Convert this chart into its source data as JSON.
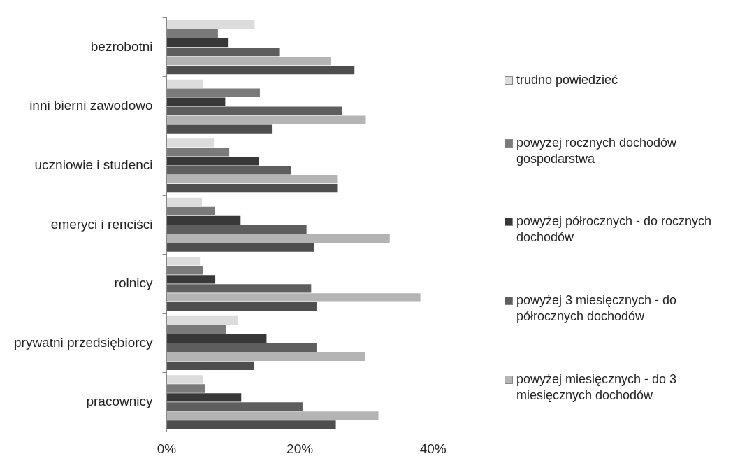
{
  "chart_data": {
    "type": "bar",
    "orientation": "horizontal",
    "categories": [
      "bezrobotni",
      "inni bierni zawodowo",
      "uczniowie i studenci",
      "emeryci i renciści",
      "rolnicy",
      "prywatni przedsiębiorcy",
      "pracownicy"
    ],
    "series": [
      {
        "name": "trudno powiedzieć",
        "color": "#dcdcdc",
        "values": [
          13.2,
          5.4,
          7.1,
          5.3,
          5.0,
          10.7,
          5.4
        ]
      },
      {
        "name": "powyżej rocznych dochodów gospodarstwa",
        "color": "#7a7a7a",
        "values": [
          7.7,
          14.0,
          9.4,
          7.2,
          5.4,
          8.9,
          5.8
        ]
      },
      {
        "name": "powyżej półrocznych - do rocznych dochodów",
        "color": "#383838",
        "values": [
          9.3,
          8.8,
          13.9,
          11.1,
          7.3,
          15.0,
          11.2
        ]
      },
      {
        "name": "powyżej 3 miesięcznych - do półrocznych dochodów",
        "color": "#5e5e5e",
        "values": [
          16.9,
          26.3,
          18.7,
          21.0,
          21.7,
          22.5,
          20.4
        ]
      },
      {
        "name": "powyżej miesięcznych - do 3 miesięcznych dochodów",
        "color": "#b4b4b4",
        "values": [
          24.7,
          29.9,
          25.6,
          33.5,
          38.1,
          29.8,
          31.8
        ]
      },
      {
        "color": "#4e4e4e",
        "values": [
          28.2,
          15.8,
          25.6,
          22.1,
          22.5,
          13.1,
          25.4
        ]
      }
    ],
    "xlim": [
      0,
      50
    ],
    "xticks": [
      {
        "value": 0,
        "label": "0%"
      },
      {
        "value": 20,
        "label": "20%"
      },
      {
        "value": 40,
        "label": "40%"
      }
    ],
    "grid": "x",
    "legend": "right"
  }
}
